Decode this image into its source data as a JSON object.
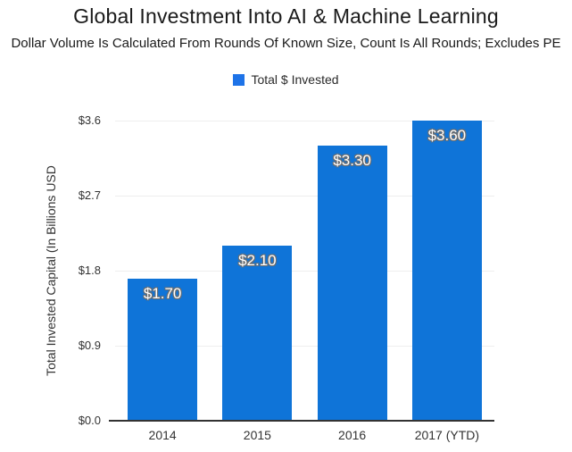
{
  "title": "Global Investment Into AI & Machine Learning",
  "subtitle": "Dollar Volume Is Calculated From Rounds Of Known Size, Count Is All Rounds; Excludes PE",
  "legend": {
    "label": "Total $ Invested"
  },
  "colors": {
    "bar": "#0f74d8",
    "legend_swatch": "#1e73e8",
    "grid": "#eeeeee",
    "baseline": "#333333"
  },
  "chart_data": {
    "type": "bar",
    "categories": [
      "2014",
      "2015",
      "2016",
      "2017 (YTD)"
    ],
    "values": [
      1.7,
      2.1,
      3.3,
      3.6
    ],
    "bar_labels": [
      "$1.70",
      "$2.10",
      "$3.30",
      "$3.60"
    ],
    "title": "Global Investment Into AI & Machine Learning",
    "subtitle": "Dollar Volume Is Calculated From Rounds Of Known Size, Count Is All Rounds; Excludes PE",
    "xlabel": "",
    "ylabel": "Total Invested Capital (In Billions USD",
    "ylim": [
      0,
      3.6
    ],
    "yticks": [
      {
        "value": 0.0,
        "label": "$0.0"
      },
      {
        "value": 0.9,
        "label": "$0.9"
      },
      {
        "value": 1.8,
        "label": "$1.8"
      },
      {
        "value": 2.7,
        "label": "$2.7"
      },
      {
        "value": 3.6,
        "label": "$3.6"
      }
    ],
    "legend_entries": [
      "Total $ Invested"
    ],
    "legend_position": "top",
    "grid": true
  }
}
